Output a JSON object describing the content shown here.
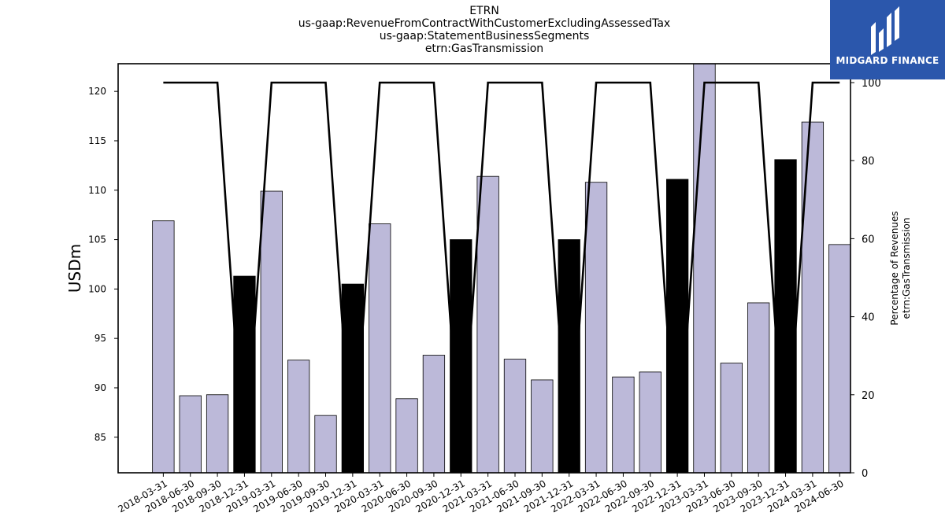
{
  "header": {
    "title_lines": [
      "ETRN",
      "us-gaap:RevenueFromContractWithCustomerExcludingAssessedTax",
      "us-gaap:StatementBusinessSegments",
      "etrn:GasTransmission"
    ]
  },
  "logo": {
    "text": "MIDGARD FINANCE",
    "bg_color": "#2b57ac"
  },
  "chart_data": {
    "type": "bar",
    "categories": [
      "2018-03-31",
      "2018-06-30",
      "2018-09-30",
      "2018-12-31",
      "2019-03-31",
      "2019-06-30",
      "2019-09-30",
      "2019-12-31",
      "2020-03-31",
      "2020-06-30",
      "2020-09-30",
      "2020-12-31",
      "2021-03-31",
      "2021-06-30",
      "2021-09-30",
      "2021-12-31",
      "2022-03-31",
      "2022-06-30",
      "2022-09-30",
      "2022-12-31",
      "2023-03-31",
      "2023-06-30",
      "2023-09-30",
      "2023-12-31",
      "2024-03-31",
      "2024-06-30"
    ],
    "series": [
      {
        "axis": "left",
        "values": [
          106.9,
          89.2,
          89.3,
          101.3,
          109.9,
          92.8,
          87.2,
          100.5,
          106.6,
          88.9,
          93.3,
          105.0,
          111.4,
          92.9,
          90.8,
          105.0,
          110.8,
          91.1,
          91.6,
          111.1,
          123.0,
          92.5,
          98.6,
          113.1,
          116.9,
          104.5
        ],
        "highlight_indices": [
          3,
          7,
          11,
          15,
          19,
          23
        ],
        "bar_color": "#bcb9d9",
        "highlight_color": "#000000"
      },
      {
        "axis": "right",
        "type": "line",
        "values": [
          100,
          100,
          100,
          null,
          100,
          100,
          100,
          null,
          100,
          100,
          100,
          null,
          100,
          100,
          100,
          null,
          100,
          100,
          100,
          null,
          100,
          100,
          100,
          null,
          100,
          100
        ],
        "color": "#000000"
      }
    ],
    "ylabel": "USDm",
    "y2label_lines": [
      "Percentage of Revenues",
      "etrn:GasTransmission"
    ],
    "ylim": [
      81.4,
      122.8
    ],
    "y2lim": [
      0,
      100
    ],
    "yticks": [
      85,
      90,
      95,
      100,
      105,
      110,
      115,
      120
    ],
    "y2ticks": [
      0,
      20,
      40,
      60,
      80,
      100
    ],
    "xlabel": "",
    "grid": false
  }
}
